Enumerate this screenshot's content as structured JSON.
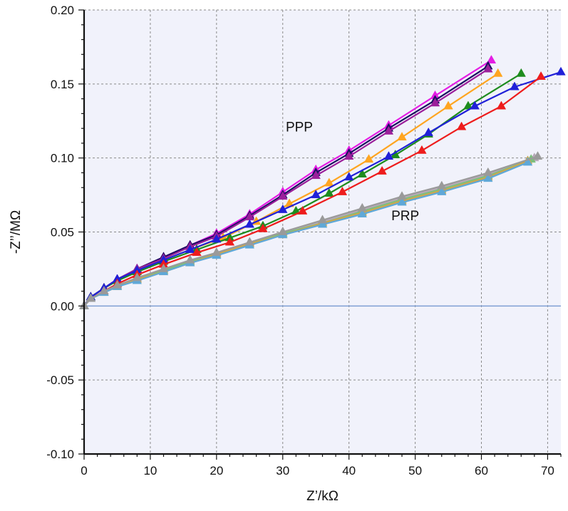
{
  "chart_data": {
    "type": "line",
    "title": "",
    "xlabel": "Z’/kΩ",
    "ylabel": "-Z’’/MΩ",
    "xlim": [
      0,
      72
    ],
    "ylim": [
      -0.1,
      0.2
    ],
    "xticks": [
      "0",
      "10",
      "20",
      "30",
      "40",
      "50",
      "60",
      "70"
    ],
    "yticks": [
      "0.20",
      "0.15",
      "0.10",
      "0.05",
      "0.00",
      "-0.05",
      "-0.10"
    ],
    "grid": true,
    "zero_line_color": "#7f9fd3",
    "background_color": "#f1f2fb",
    "annotations": [
      {
        "text": "PPP",
        "x": 32.5,
        "y": 0.118
      },
      {
        "text": "PRP",
        "x": 48.5,
        "y": 0.058
      }
    ],
    "series": [
      {
        "group": "PPP",
        "color": "#e41de4",
        "points": [
          [
            0,
            0
          ],
          [
            1,
            0.006
          ],
          [
            3,
            0.012
          ],
          [
            5,
            0.018
          ],
          [
            8,
            0.025
          ],
          [
            12,
            0.033
          ],
          [
            16,
            0.041
          ],
          [
            20,
            0.049
          ],
          [
            25,
            0.062
          ],
          [
            30,
            0.077
          ],
          [
            35,
            0.092
          ],
          [
            40,
            0.105
          ],
          [
            46,
            0.122
          ],
          [
            53,
            0.142
          ],
          [
            61.5,
            0.166
          ]
        ]
      },
      {
        "group": "PPP",
        "color": "#1a1060",
        "points": [
          [
            0,
            0
          ],
          [
            1,
            0.006
          ],
          [
            3,
            0.012
          ],
          [
            5,
            0.018
          ],
          [
            8,
            0.025
          ],
          [
            12,
            0.033
          ],
          [
            16,
            0.041
          ],
          [
            20,
            0.048
          ],
          [
            25,
            0.061
          ],
          [
            30,
            0.075
          ],
          [
            35,
            0.09
          ],
          [
            40,
            0.103
          ],
          [
            46,
            0.12
          ],
          [
            53,
            0.139
          ],
          [
            61,
            0.162
          ]
        ]
      },
      {
        "group": "PPP",
        "color": "#9b1f9b",
        "points": [
          [
            0,
            0
          ],
          [
            1,
            0.006
          ],
          [
            3,
            0.012
          ],
          [
            5,
            0.018
          ],
          [
            8,
            0.025
          ],
          [
            12,
            0.032
          ],
          [
            16,
            0.04
          ],
          [
            20,
            0.047
          ],
          [
            25,
            0.06
          ],
          [
            30,
            0.074
          ],
          [
            35,
            0.088
          ],
          [
            40,
            0.101
          ],
          [
            46,
            0.118
          ],
          [
            53,
            0.137
          ],
          [
            61,
            0.16
          ]
        ]
      },
      {
        "group": "PPP",
        "color": "#ffa520",
        "points": [
          [
            0,
            0
          ],
          [
            1,
            0.006
          ],
          [
            3,
            0.012
          ],
          [
            5,
            0.017
          ],
          [
            8,
            0.024
          ],
          [
            12,
            0.031
          ],
          [
            16,
            0.038
          ],
          [
            21,
            0.046
          ],
          [
            26,
            0.057
          ],
          [
            31,
            0.069
          ],
          [
            37,
            0.083
          ],
          [
            43,
            0.099
          ],
          [
            48,
            0.114
          ],
          [
            55,
            0.135
          ],
          [
            62.5,
            0.157
          ]
        ]
      },
      {
        "group": "PPP",
        "color": "#1e8c1e",
        "points": [
          [
            0,
            0
          ],
          [
            1,
            0.006
          ],
          [
            3,
            0.012
          ],
          [
            5,
            0.017
          ],
          [
            8,
            0.023
          ],
          [
            12,
            0.03
          ],
          [
            17,
            0.038
          ],
          [
            22,
            0.046
          ],
          [
            27,
            0.054
          ],
          [
            32,
            0.064
          ],
          [
            37,
            0.076
          ],
          [
            42,
            0.089
          ],
          [
            47,
            0.102
          ],
          [
            52,
            0.116
          ],
          [
            58,
            0.135
          ],
          [
            66,
            0.157
          ]
        ]
      },
      {
        "group": "PPP",
        "color": "#2020d8",
        "points": [
          [
            0,
            0
          ],
          [
            1,
            0.006
          ],
          [
            3,
            0.012
          ],
          [
            5,
            0.018
          ],
          [
            8,
            0.024
          ],
          [
            12,
            0.031
          ],
          [
            16,
            0.038
          ],
          [
            20,
            0.045
          ],
          [
            25,
            0.055
          ],
          [
            30,
            0.065
          ],
          [
            35,
            0.075
          ],
          [
            40,
            0.087
          ],
          [
            46,
            0.101
          ],
          [
            52,
            0.117
          ],
          [
            59,
            0.135
          ],
          [
            65,
            0.148
          ],
          [
            72,
            0.158
          ]
        ]
      },
      {
        "group": "PPP",
        "color": "#ee1c1c",
        "points": [
          [
            0,
            0
          ],
          [
            1,
            0.005
          ],
          [
            3,
            0.01
          ],
          [
            5,
            0.015
          ],
          [
            8,
            0.021
          ],
          [
            12,
            0.028
          ],
          [
            17,
            0.036
          ],
          [
            22,
            0.043
          ],
          [
            27,
            0.052
          ],
          [
            33,
            0.064
          ],
          [
            39,
            0.077
          ],
          [
            45,
            0.091
          ],
          [
            51,
            0.105
          ],
          [
            57,
            0.121
          ],
          [
            63,
            0.135
          ],
          [
            69,
            0.155
          ]
        ]
      },
      {
        "group": "PRP",
        "color": "#b8a8b8",
        "points": [
          [
            0,
            0
          ],
          [
            1,
            0.005
          ],
          [
            3,
            0.009
          ],
          [
            5,
            0.013
          ],
          [
            8,
            0.018
          ],
          [
            12,
            0.024
          ],
          [
            16,
            0.03
          ],
          [
            20,
            0.036
          ],
          [
            25,
            0.043
          ],
          [
            30,
            0.05
          ],
          [
            36,
            0.057
          ],
          [
            42,
            0.065
          ],
          [
            48,
            0.073
          ],
          [
            54,
            0.08
          ],
          [
            61,
            0.089
          ],
          [
            68,
            0.1
          ]
        ]
      },
      {
        "group": "PRP",
        "color": "#7cbf7c",
        "points": [
          [
            0,
            0
          ],
          [
            1,
            0.005
          ],
          [
            3,
            0.009
          ],
          [
            5,
            0.013
          ],
          [
            8,
            0.018
          ],
          [
            12,
            0.024
          ],
          [
            16,
            0.03
          ],
          [
            20,
            0.035
          ],
          [
            25,
            0.042
          ],
          [
            30,
            0.049
          ],
          [
            36,
            0.056
          ],
          [
            42,
            0.064
          ],
          [
            48,
            0.072
          ],
          [
            54,
            0.079
          ],
          [
            61,
            0.088
          ],
          [
            67.5,
            0.099
          ]
        ]
      },
      {
        "group": "PRP",
        "color": "#cfa64a",
        "points": [
          [
            0,
            0
          ],
          [
            1,
            0.005
          ],
          [
            3,
            0.009
          ],
          [
            5,
            0.013
          ],
          [
            8,
            0.018
          ],
          [
            12,
            0.023
          ],
          [
            16,
            0.029
          ],
          [
            20,
            0.035
          ],
          [
            25,
            0.042
          ],
          [
            30,
            0.048
          ],
          [
            36,
            0.056
          ],
          [
            42,
            0.063
          ],
          [
            48,
            0.071
          ],
          [
            54,
            0.078
          ],
          [
            61,
            0.087
          ],
          [
            67,
            0.098
          ]
        ]
      },
      {
        "group": "PRP",
        "color": "#5fa8d8",
        "points": [
          [
            0,
            0
          ],
          [
            1,
            0.005
          ],
          [
            3,
            0.009
          ],
          [
            5,
            0.013
          ],
          [
            8,
            0.017
          ],
          [
            12,
            0.023
          ],
          [
            16,
            0.029
          ],
          [
            20,
            0.034
          ],
          [
            25,
            0.041
          ],
          [
            30,
            0.048
          ],
          [
            36,
            0.055
          ],
          [
            42,
            0.062
          ],
          [
            48,
            0.07
          ],
          [
            54,
            0.077
          ],
          [
            61,
            0.086
          ],
          [
            67,
            0.097
          ]
        ]
      },
      {
        "group": "PRP",
        "color": "#9a9a9a",
        "points": [
          [
            0,
            0
          ],
          [
            1,
            0.005
          ],
          [
            3,
            0.01
          ],
          [
            5,
            0.014
          ],
          [
            8,
            0.019
          ],
          [
            12,
            0.025
          ],
          [
            16,
            0.031
          ],
          [
            20,
            0.036
          ],
          [
            25,
            0.043
          ],
          [
            30,
            0.05
          ],
          [
            36,
            0.058
          ],
          [
            42,
            0.066
          ],
          [
            48,
            0.074
          ],
          [
            54,
            0.081
          ],
          [
            61,
            0.09
          ],
          [
            68.5,
            0.101
          ]
        ]
      }
    ]
  }
}
